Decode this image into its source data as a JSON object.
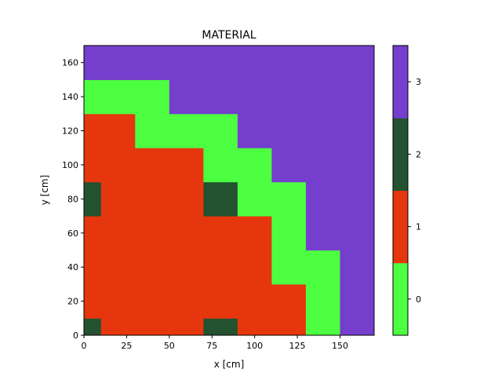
{
  "chart_data": {
    "type": "heatmap",
    "title": "MATERIAL",
    "xlabel": "x [cm]",
    "ylabel": "y [cm]",
    "xlim": [
      0,
      170
    ],
    "ylim": [
      0,
      170
    ],
    "x_edges": [
      0,
      10,
      30,
      50,
      70,
      90,
      110,
      130,
      150,
      170
    ],
    "y_edges": [
      0,
      10,
      30,
      50,
      70,
      90,
      110,
      130,
      150,
      170
    ],
    "xticks": [
      0,
      25,
      50,
      75,
      100,
      125,
      150
    ],
    "yticks": [
      0,
      20,
      40,
      60,
      80,
      100,
      120,
      140,
      160
    ],
    "grid": false,
    "values_rows_bottom_to_top": [
      [
        2,
        1,
        1,
        1,
        2,
        1,
        1,
        0,
        3
      ],
      [
        1,
        1,
        1,
        1,
        1,
        1,
        1,
        0,
        3
      ],
      [
        1,
        1,
        1,
        1,
        1,
        1,
        0,
        0,
        3
      ],
      [
        1,
        1,
        1,
        1,
        1,
        1,
        0,
        3,
        3
      ],
      [
        2,
        1,
        1,
        1,
        2,
        0,
        0,
        3,
        3
      ],
      [
        1,
        1,
        1,
        1,
        0,
        0,
        3,
        3,
        3
      ],
      [
        1,
        1,
        0,
        0,
        0,
        3,
        3,
        3,
        3
      ],
      [
        0,
        0,
        0,
        3,
        3,
        3,
        3,
        3,
        3
      ],
      [
        3,
        3,
        3,
        3,
        3,
        3,
        3,
        3,
        3
      ]
    ],
    "colorbar": {
      "levels": [
        0,
        1,
        2,
        3
      ],
      "tick_labels": [
        "0",
        "1",
        "2",
        "3"
      ],
      "colors": [
        "#4dff41",
        "#e6360e",
        "#235230",
        "#753ecc"
      ]
    }
  }
}
